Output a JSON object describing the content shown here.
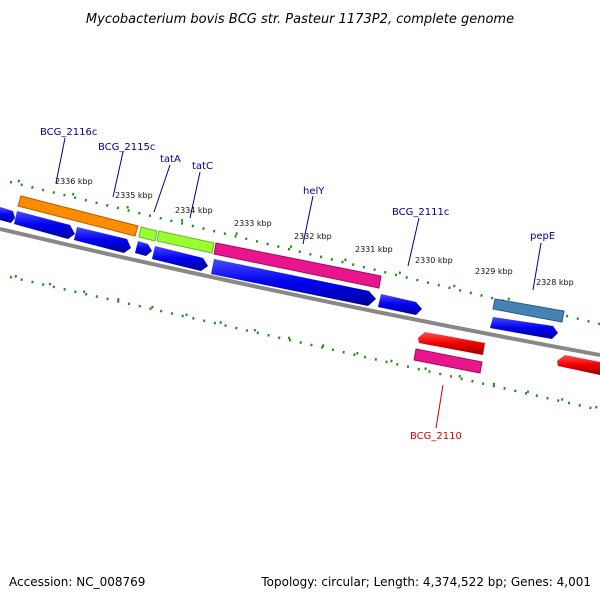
{
  "title": "Mycobacterium bovis BCG str. Pasteur 1173P2, complete genome",
  "footer": {
    "accession": "Accession: NC_008769",
    "summary": "Topology: circular; Length: 4,374,522 bp; Genes: 4,001"
  },
  "scale_labels": [
    "2336 kbp",
    "2335 kbp",
    "2334 kbp",
    "2333 kbp",
    "2332 kbp",
    "2331 kbp",
    "2330 kbp",
    "2329 kbp",
    "2328 kbp"
  ],
  "gene_labels": {
    "bcg_2116c": "BCG_2116c",
    "bcg_2115c": "BCG_2115c",
    "tatA": "tatA",
    "tatC": "tatC",
    "helY": "helY",
    "bcg_2111c": "BCG_2111c",
    "pepE": "pepE",
    "bcg_2110": "BCG_2110"
  },
  "colors": {
    "label_blue": "#00008b",
    "label_red": "#cc0000",
    "orange": "#ff8c00",
    "lime": "#99ff33",
    "magenta": "#e8158c",
    "steelblue": "#4682b4",
    "blue": "#0000ee",
    "red": "#ee0000",
    "backbone": "#888888",
    "tick": "#1e8c1e"
  }
}
